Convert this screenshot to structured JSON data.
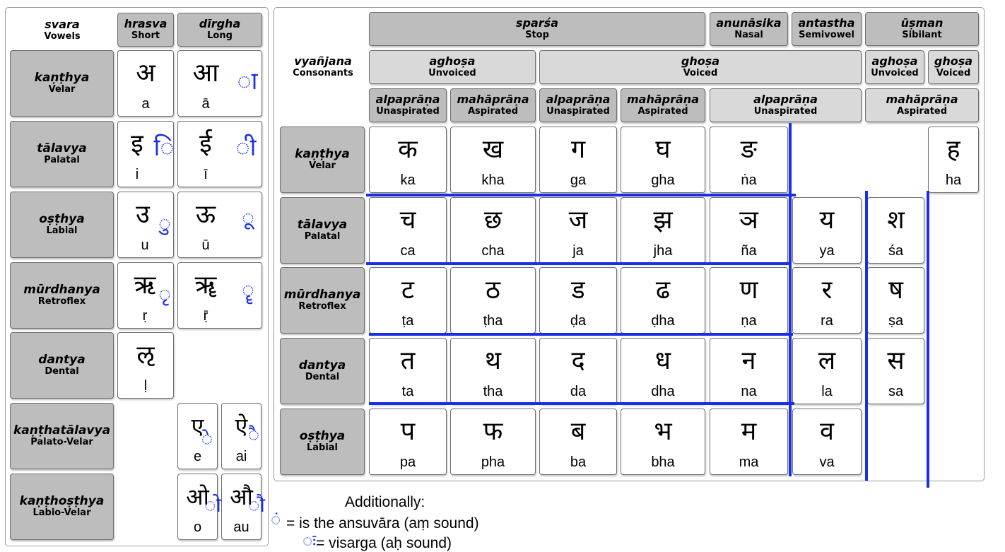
{
  "vowels": {
    "corner": {
      "title": "svara",
      "subtitle": "Vowels"
    },
    "columns": [
      {
        "title": "hrasva",
        "subtitle": "Short"
      },
      {
        "title": "dīrgha",
        "subtitle": "Long"
      }
    ],
    "rows": [
      {
        "title": "kaṇṭhya",
        "subtitle": "Velar"
      },
      {
        "title": "tālavya",
        "subtitle": "Palatal"
      },
      {
        "title": "oṣṭhya",
        "subtitle": "Labial"
      },
      {
        "title": "mūrdhanya",
        "subtitle": "Retroflex"
      },
      {
        "title": "dantya",
        "subtitle": "Dental"
      },
      {
        "title": "kaṇṭhatālavya",
        "subtitle": "Palato-Velar"
      },
      {
        "title": "kaṇṭhoṣṭhya",
        "subtitle": "Labio-Velar"
      }
    ],
    "cells": {
      "a": {
        "dev": "अ",
        "lat": "a"
      },
      "aa": {
        "dev": "आ",
        "lat": "ā"
      },
      "i": {
        "dev": "इ",
        "lat": "i"
      },
      "ii": {
        "dev": "ई",
        "lat": "ī"
      },
      "u": {
        "dev": "उ",
        "lat": "u"
      },
      "uu": {
        "dev": "ऊ",
        "lat": "ū"
      },
      "r": {
        "dev": "ऋ",
        "lat": "ṛ"
      },
      "rr": {
        "dev": "ॠ",
        "lat": "ṝ"
      },
      "l": {
        "dev": "ऌ",
        "lat": "ḷ"
      },
      "e": {
        "dev": "ए",
        "lat": "e"
      },
      "ai": {
        "dev": "ऐ",
        "lat": "ai"
      },
      "o": {
        "dev": "ओ",
        "lat": "o"
      },
      "au": {
        "dev": "औ",
        "lat": "au"
      }
    },
    "marks": {
      "aa": "ा",
      "i": "ि",
      "ii": "ी",
      "u": "ु",
      "uu": "ू",
      "r": "ृ",
      "rr": "ॄ",
      "e": "े",
      "ai": "ै",
      "o": "ो",
      "au": "ौ"
    }
  },
  "consonants": {
    "corner": {
      "title": "vyañjana",
      "subtitle": "Consonants"
    },
    "header1": [
      {
        "title": "sparśa",
        "subtitle": "Stop"
      },
      {
        "title": "anunāsika",
        "subtitle": "Nasal"
      },
      {
        "title": "antastha",
        "subtitle": "Semivowel"
      },
      {
        "title": "ūṣman",
        "subtitle": "Sibilant"
      }
    ],
    "header2": [
      {
        "title": "aghoṣa",
        "subtitle": "Unvoiced"
      },
      {
        "title": "ghoṣa",
        "subtitle": "Voiced"
      },
      {
        "title": "aghoṣa",
        "subtitle": "Unvoiced"
      },
      {
        "title": "ghoṣa",
        "subtitle": "Voiced"
      }
    ],
    "header3": [
      {
        "title": "alpaprāṇa",
        "subtitle": "Unaspirated"
      },
      {
        "title": "mahāprāṇa",
        "subtitle": "Aspirated"
      },
      {
        "title": "alpaprāṇa",
        "subtitle": "Unaspirated"
      },
      {
        "title": "mahāprāṇa",
        "subtitle": "Aspirated"
      },
      {
        "title": "alpaprāṇa",
        "subtitle": "Unaspirated"
      },
      {
        "title": "mahāprāṇa",
        "subtitle": "Aspirated"
      }
    ],
    "rows": [
      {
        "title": "kaṇṭhya",
        "subtitle": "Velar"
      },
      {
        "title": "tālavya",
        "subtitle": "Palatal"
      },
      {
        "title": "mūrdhanya",
        "subtitle": "Retroflex"
      },
      {
        "title": "dantya",
        "subtitle": "Dental"
      },
      {
        "title": "oṣṭhya",
        "subtitle": "Labial"
      }
    ],
    "grid": [
      [
        {
          "dev": "क",
          "lat": "ka"
        },
        {
          "dev": "ख",
          "lat": "kha"
        },
        {
          "dev": "ग",
          "lat": "ga"
        },
        {
          "dev": "घ",
          "lat": "gha"
        },
        {
          "dev": "ङ",
          "lat": "ṅa"
        },
        null,
        null,
        {
          "dev": "ह",
          "lat": "ha"
        }
      ],
      [
        {
          "dev": "च",
          "lat": "ca"
        },
        {
          "dev": "छ",
          "lat": "cha"
        },
        {
          "dev": "ज",
          "lat": "ja"
        },
        {
          "dev": "झ",
          "lat": "jha"
        },
        {
          "dev": "ञ",
          "lat": "ña"
        },
        {
          "dev": "य",
          "lat": "ya"
        },
        {
          "dev": "श",
          "lat": "śa"
        },
        null
      ],
      [
        {
          "dev": "ट",
          "lat": "ṭa"
        },
        {
          "dev": "ठ",
          "lat": "ṭha"
        },
        {
          "dev": "ड",
          "lat": "ḍa"
        },
        {
          "dev": "ढ",
          "lat": "ḍha"
        },
        {
          "dev": "ण",
          "lat": "ṇa"
        },
        {
          "dev": "र",
          "lat": "ra"
        },
        {
          "dev": "ष",
          "lat": "ṣa"
        },
        null
      ],
      [
        {
          "dev": "त",
          "lat": "ta"
        },
        {
          "dev": "थ",
          "lat": "tha"
        },
        {
          "dev": "द",
          "lat": "da"
        },
        {
          "dev": "ध",
          "lat": "dha"
        },
        {
          "dev": "न",
          "lat": "na"
        },
        {
          "dev": "ल",
          "lat": "la"
        },
        {
          "dev": "स",
          "lat": "sa"
        },
        null
      ],
      [
        {
          "dev": "प",
          "lat": "pa"
        },
        {
          "dev": "फ",
          "lat": "pha"
        },
        {
          "dev": "ब",
          "lat": "ba"
        },
        {
          "dev": "भ",
          "lat": "bha"
        },
        {
          "dev": "म",
          "lat": "ma"
        },
        {
          "dev": "व",
          "lat": "va"
        },
        null,
        null
      ]
    ]
  },
  "notes": {
    "heading": "Additionally:",
    "anusvara_text": "= is the ansuvāra (aṃ sound)",
    "anusvara_mark": "ं",
    "visarga_text": "= visarga (aḥ sound)",
    "visarga_mark": "ः"
  },
  "colors": {
    "ink_blue": "#1a2ee8",
    "header_dark": "#bdbdbd",
    "header_light": "#d9d9d9"
  }
}
